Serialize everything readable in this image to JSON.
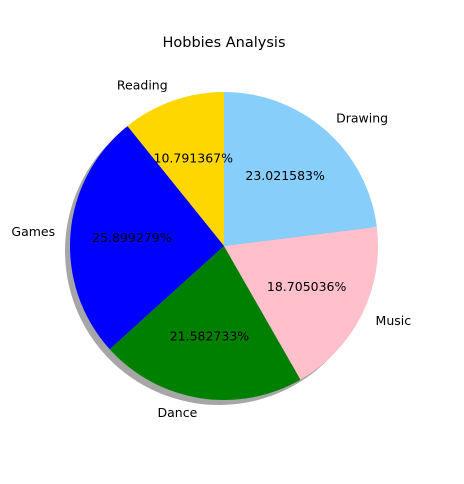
{
  "chart_data": {
    "type": "pie",
    "title": "Hobbies Analysis",
    "categories": [
      "Reading",
      "Games",
      "Dance",
      "Music",
      "Drawing"
    ],
    "values": [
      10.791367,
      25.899279,
      21.582733,
      18.705036,
      23.021583
    ],
    "labels": [
      "10.791367%",
      "25.899279%",
      "21.582733%",
      "18.705036%",
      "23.021583%"
    ],
    "colors": [
      "#ffd700",
      "#0000ff",
      "#008000",
      "#ffc0cb",
      "#87cefa"
    ],
    "start_angle_deg": 90,
    "direction": "counterclockwise",
    "shadow": true,
    "legend": "none"
  }
}
